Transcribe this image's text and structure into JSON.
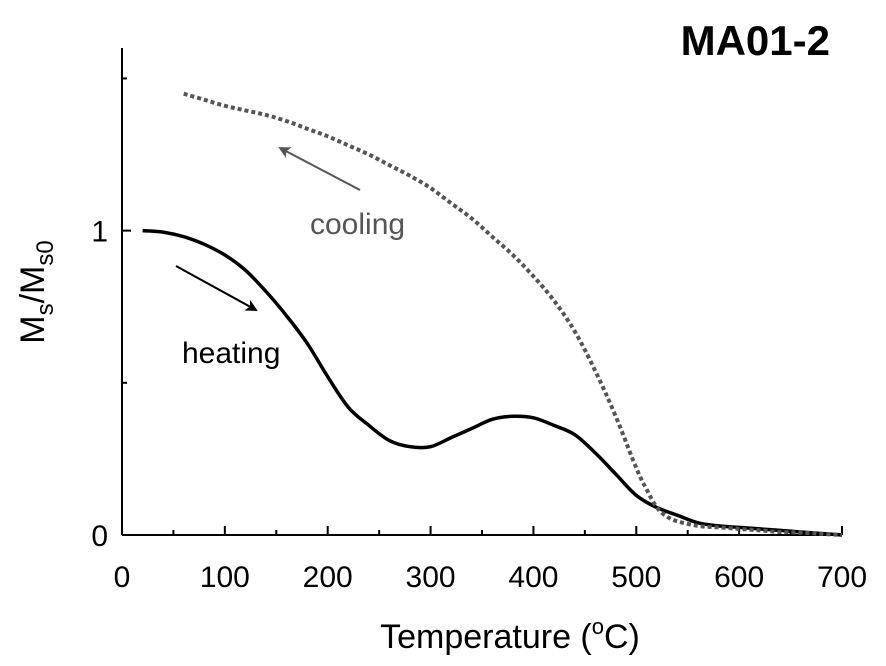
{
  "chart_data": {
    "type": "line",
    "title": "MA01-2",
    "xlabel": "Temperature (°C)",
    "xlabel_parts": {
      "main": "Temperature (",
      "sup": "o",
      "tail": "C)"
    },
    "ylabel": "Ms/Ms0",
    "ylabel_parts": {
      "m1": "M",
      "sub1": "s",
      "slash": "/M",
      "sub2": "s0"
    },
    "xlim": [
      0,
      700
    ],
    "ylim": [
      0,
      1.6
    ],
    "x_ticks": [
      0,
      100,
      200,
      300,
      400,
      500,
      600,
      700
    ],
    "x_tick_labels": [
      "0",
      "100",
      "200",
      "300",
      "400",
      "500",
      "600",
      "700"
    ],
    "y_ticks": [
      0,
      1
    ],
    "y_tick_labels": [
      "0",
      "1"
    ],
    "y_minor_ticks": [
      0.5,
      1.5
    ],
    "x_minor_ticks": [
      50,
      150,
      250,
      350,
      450,
      550,
      650
    ],
    "series": [
      {
        "name": "heating",
        "style": "solid",
        "color": "#000000",
        "x": [
          20,
          40,
          60,
          80,
          100,
          120,
          140,
          160,
          180,
          200,
          220,
          240,
          260,
          280,
          300,
          320,
          340,
          360,
          380,
          400,
          420,
          440,
          460,
          480,
          500,
          520,
          540,
          560,
          580,
          600,
          620,
          640,
          660,
          680,
          700
        ],
        "y": [
          1.0,
          0.995,
          0.98,
          0.955,
          0.92,
          0.87,
          0.8,
          0.72,
          0.63,
          0.52,
          0.42,
          0.36,
          0.31,
          0.29,
          0.29,
          0.32,
          0.35,
          0.38,
          0.39,
          0.385,
          0.36,
          0.33,
          0.27,
          0.2,
          0.13,
          0.09,
          0.065,
          0.04,
          0.03,
          0.025,
          0.02,
          0.015,
          0.01,
          0.005,
          0.0
        ]
      },
      {
        "name": "cooling",
        "style": "dotted",
        "color": "#555555",
        "x": [
          60,
          80,
          100,
          120,
          140,
          160,
          180,
          200,
          220,
          240,
          260,
          280,
          300,
          320,
          340,
          360,
          380,
          400,
          420,
          440,
          460,
          480,
          500,
          510,
          520,
          530,
          540,
          560,
          580,
          600,
          620,
          640,
          660,
          680,
          700
        ],
        "y": [
          1.45,
          1.43,
          1.41,
          1.395,
          1.38,
          1.36,
          1.335,
          1.31,
          1.28,
          1.25,
          1.215,
          1.18,
          1.14,
          1.09,
          1.04,
          0.98,
          0.92,
          0.85,
          0.77,
          0.67,
          0.54,
          0.39,
          0.22,
          0.15,
          0.09,
          0.06,
          0.045,
          0.03,
          0.025,
          0.02,
          0.015,
          0.01,
          0.008,
          0.004,
          0.0
        ]
      }
    ],
    "annotations": [
      {
        "text": "cooling",
        "color": "#555555"
      },
      {
        "text": "heating",
        "color": "#000000"
      }
    ]
  }
}
